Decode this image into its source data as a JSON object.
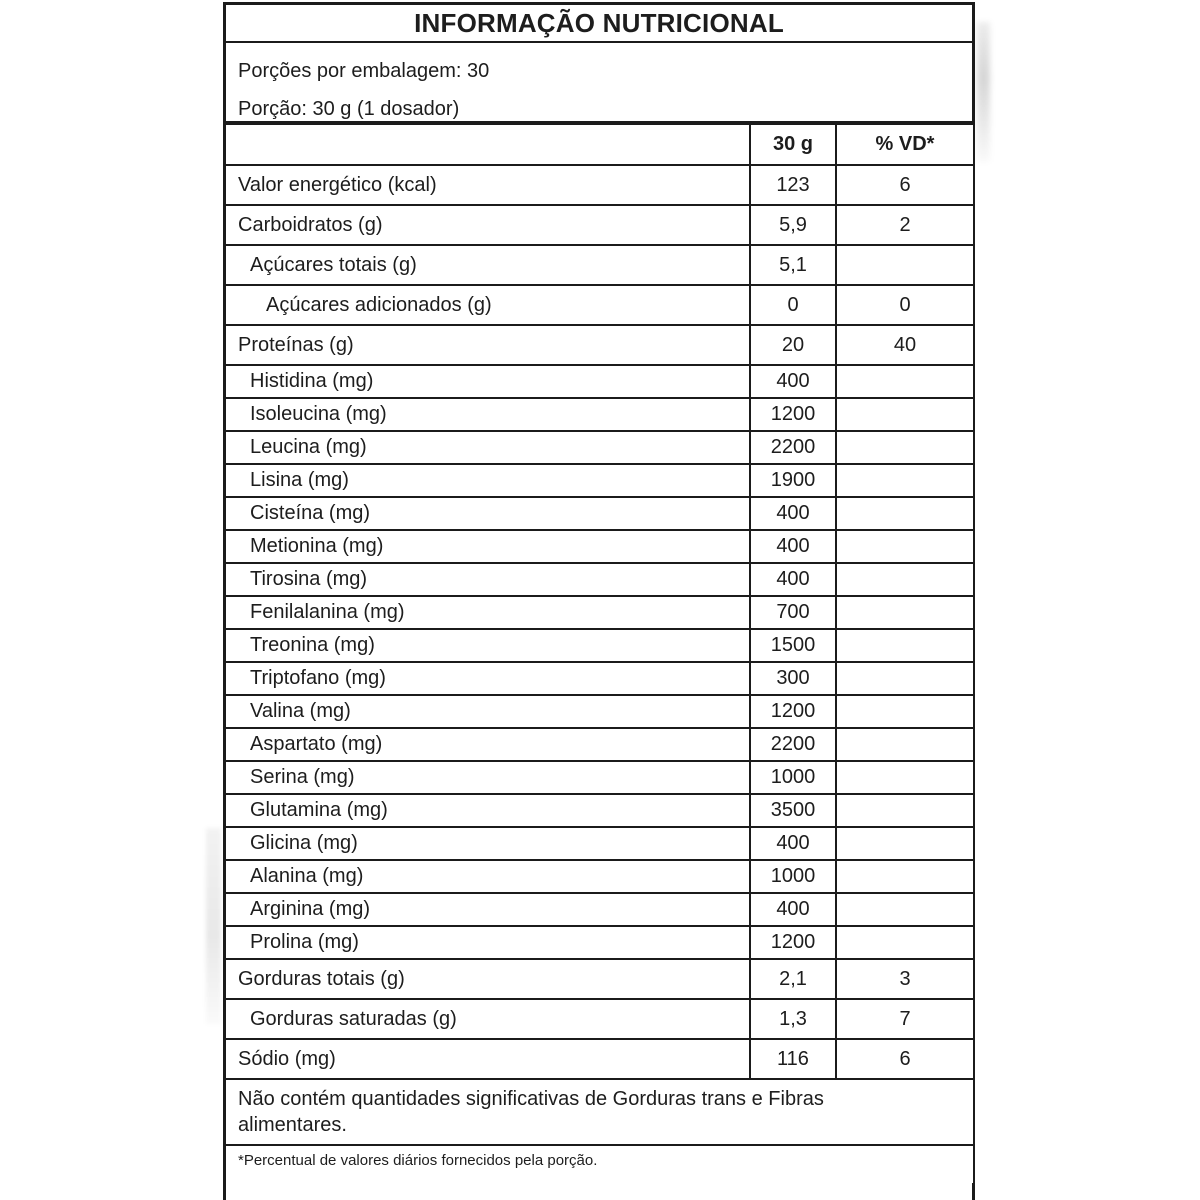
{
  "label": {
    "title": "INFORMAÇÃO NUTRICIONAL",
    "serving": {
      "line1": "Porções por embalagem: 30",
      "line2": "Porção: 30 g (1 dosador)"
    },
    "columns": {
      "amount": "30 g",
      "dv": "% VD*"
    },
    "rows": [
      {
        "label": "Valor energético (kcal)",
        "amount": "123",
        "dv": "6",
        "indent": 0,
        "size": "lg"
      },
      {
        "label": "Carboidratos (g)",
        "amount": "5,9",
        "dv": "2",
        "indent": 0,
        "size": "lg"
      },
      {
        "label": "Açúcares totais (g)",
        "amount": "5,1",
        "dv": "",
        "indent": 1,
        "size": "lg"
      },
      {
        "label": "Açúcares adicionados (g)",
        "amount": "0",
        "dv": "0",
        "indent": 2,
        "size": "lg"
      },
      {
        "label": "Proteínas (g)",
        "amount": "20",
        "dv": "40",
        "indent": 0,
        "size": "lg"
      },
      {
        "label": "Histidina (mg)",
        "amount": "400",
        "dv": "",
        "indent": 1,
        "size": "sm"
      },
      {
        "label": "Isoleucina (mg)",
        "amount": "1200",
        "dv": "",
        "indent": 1,
        "size": "sm"
      },
      {
        "label": "Leucina (mg)",
        "amount": "2200",
        "dv": "",
        "indent": 1,
        "size": "sm"
      },
      {
        "label": "Lisina (mg)",
        "amount": "1900",
        "dv": "",
        "indent": 1,
        "size": "sm"
      },
      {
        "label": "Cisteína (mg)",
        "amount": "400",
        "dv": "",
        "indent": 1,
        "size": "sm"
      },
      {
        "label": "Metionina (mg)",
        "amount": "400",
        "dv": "",
        "indent": 1,
        "size": "sm"
      },
      {
        "label": "Tirosina (mg)",
        "amount": "400",
        "dv": "",
        "indent": 1,
        "size": "sm"
      },
      {
        "label": "Fenilalanina (mg)",
        "amount": "700",
        "dv": "",
        "indent": 1,
        "size": "sm"
      },
      {
        "label": "Treonina (mg)",
        "amount": "1500",
        "dv": "",
        "indent": 1,
        "size": "sm"
      },
      {
        "label": "Triptofano (mg)",
        "amount": "300",
        "dv": "",
        "indent": 1,
        "size": "sm"
      },
      {
        "label": "Valina (mg)",
        "amount": "1200",
        "dv": "",
        "indent": 1,
        "size": "sm"
      },
      {
        "label": "Aspartato (mg)",
        "amount": "2200",
        "dv": "",
        "indent": 1,
        "size": "sm"
      },
      {
        "label": "Serina (mg)",
        "amount": "1000",
        "dv": "",
        "indent": 1,
        "size": "sm"
      },
      {
        "label": "Glutamina (mg)",
        "amount": "3500",
        "dv": "",
        "indent": 1,
        "size": "sm"
      },
      {
        "label": "Glicina (mg)",
        "amount": "400",
        "dv": "",
        "indent": 1,
        "size": "sm"
      },
      {
        "label": "Alanina (mg)",
        "amount": "1000",
        "dv": "",
        "indent": 1,
        "size": "sm"
      },
      {
        "label": "Arginina (mg)",
        "amount": "400",
        "dv": "",
        "indent": 1,
        "size": "sm"
      },
      {
        "label": "Prolina (mg)",
        "amount": "1200",
        "dv": "",
        "indent": 1,
        "size": "sm"
      },
      {
        "label": "Gorduras totais (g)",
        "amount": "2,1",
        "dv": "3",
        "indent": 0,
        "size": "lg"
      },
      {
        "label": "Gorduras saturadas (g)",
        "amount": "1,3",
        "dv": "7",
        "indent": 1,
        "size": "lg"
      },
      {
        "label": "Sódio (mg)",
        "amount": "116",
        "dv": "6",
        "indent": 0,
        "size": "lg"
      }
    ],
    "note": "Não contém quantidades significativas de Gorduras trans e Fibras alimentares.",
    "footnote": "*Percentual de valores diários fornecidos pela porção."
  },
  "colors": {
    "border": "#1b1b1b",
    "text": "#1d1d1d",
    "background": "#ffffff"
  }
}
